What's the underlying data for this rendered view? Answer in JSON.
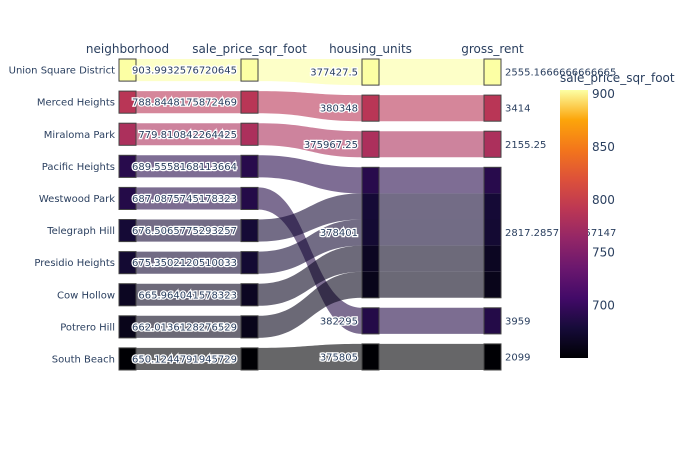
{
  "chart_data": {
    "type": "parallel_categories",
    "dimensions": [
      "neighborhood",
      "sale_price_sqr_foot",
      "housing_units",
      "gross_rent"
    ],
    "records": [
      {
        "neighborhood": "Union Square District",
        "sale_price_sqr_foot": "903.9932576720645",
        "housing_units": "377427.5",
        "gross_rent": "2555.1666666666665",
        "color_value": 903.99
      },
      {
        "neighborhood": "Merced Heights",
        "sale_price_sqr_foot": "788.8448175872469",
        "housing_units": "380348",
        "gross_rent": "3414",
        "color_value": 788.84
      },
      {
        "neighborhood": "Miraloma Park",
        "sale_price_sqr_foot": "779.810842264425",
        "housing_units": "375967.25",
        "gross_rent": "2155.25",
        "color_value": 779.81
      },
      {
        "neighborhood": "Pacific Heights",
        "sale_price_sqr_foot": "689.5558168113664",
        "housing_units": "378401",
        "gross_rent": "2817.2857142857147",
        "color_value": 689.56
      },
      {
        "neighborhood": "Westwood Park",
        "sale_price_sqr_foot": "687.0875745178323",
        "housing_units": "382295",
        "gross_rent": "3959",
        "color_value": 687.09
      },
      {
        "neighborhood": "Telegraph Hill",
        "sale_price_sqr_foot": "676.5065775293257",
        "housing_units": "378401",
        "gross_rent": "2817.2857142857147",
        "color_value": 676.51
      },
      {
        "neighborhood": "Presidio Heights",
        "sale_price_sqr_foot": "675.3502120510033",
        "housing_units": "378401",
        "gross_rent": "2817.2857142857147",
        "color_value": 675.35
      },
      {
        "neighborhood": "Cow Hollow",
        "sale_price_sqr_foot": "665.964041578323",
        "housing_units": "378401",
        "gross_rent": "2817.2857142857147",
        "color_value": 665.96
      },
      {
        "neighborhood": "Potrero Hill",
        "sale_price_sqr_foot": "662.0136128276529",
        "housing_units": "378401",
        "gross_rent": "2817.2857142857147",
        "color_value": 662.01
      },
      {
        "neighborhood": "South Beach",
        "sale_price_sqr_foot": "650.1244791945729",
        "housing_units": "375805",
        "gross_rent": "2099",
        "color_value": 650.12
      }
    ],
    "categories": {
      "neighborhood": [
        "Union Square District",
        "Merced Heights",
        "Miraloma Park",
        "Pacific Heights",
        "Westwood Park",
        "Telegraph Hill",
        "Presidio Heights",
        "Cow Hollow",
        "Potrero Hill",
        "South Beach"
      ],
      "sale_price_sqr_foot": [
        "903.9932576720645",
        "788.8448175872469",
        "779.810842264425",
        "689.5558168113664",
        "687.0875745178323",
        "676.5065775293257",
        "675.3502120510033",
        "665.964041578323",
        "662.0136128276529",
        "650.1244791945729"
      ],
      "housing_units": [
        "377427.5",
        "380348",
        "375967.25",
        "378401",
        "382295",
        "375805"
      ],
      "gross_rent": [
        "2555.1666666666665",
        "3414",
        "2155.25",
        "2817.2857142857147",
        "3959",
        "2099"
      ]
    },
    "colorbar": {
      "title": "sale_price_sqr_foot",
      "colorscale": "inferno",
      "range": [
        650.12,
        903.99
      ],
      "ticks": [
        700,
        750,
        800,
        850,
        900
      ]
    }
  }
}
